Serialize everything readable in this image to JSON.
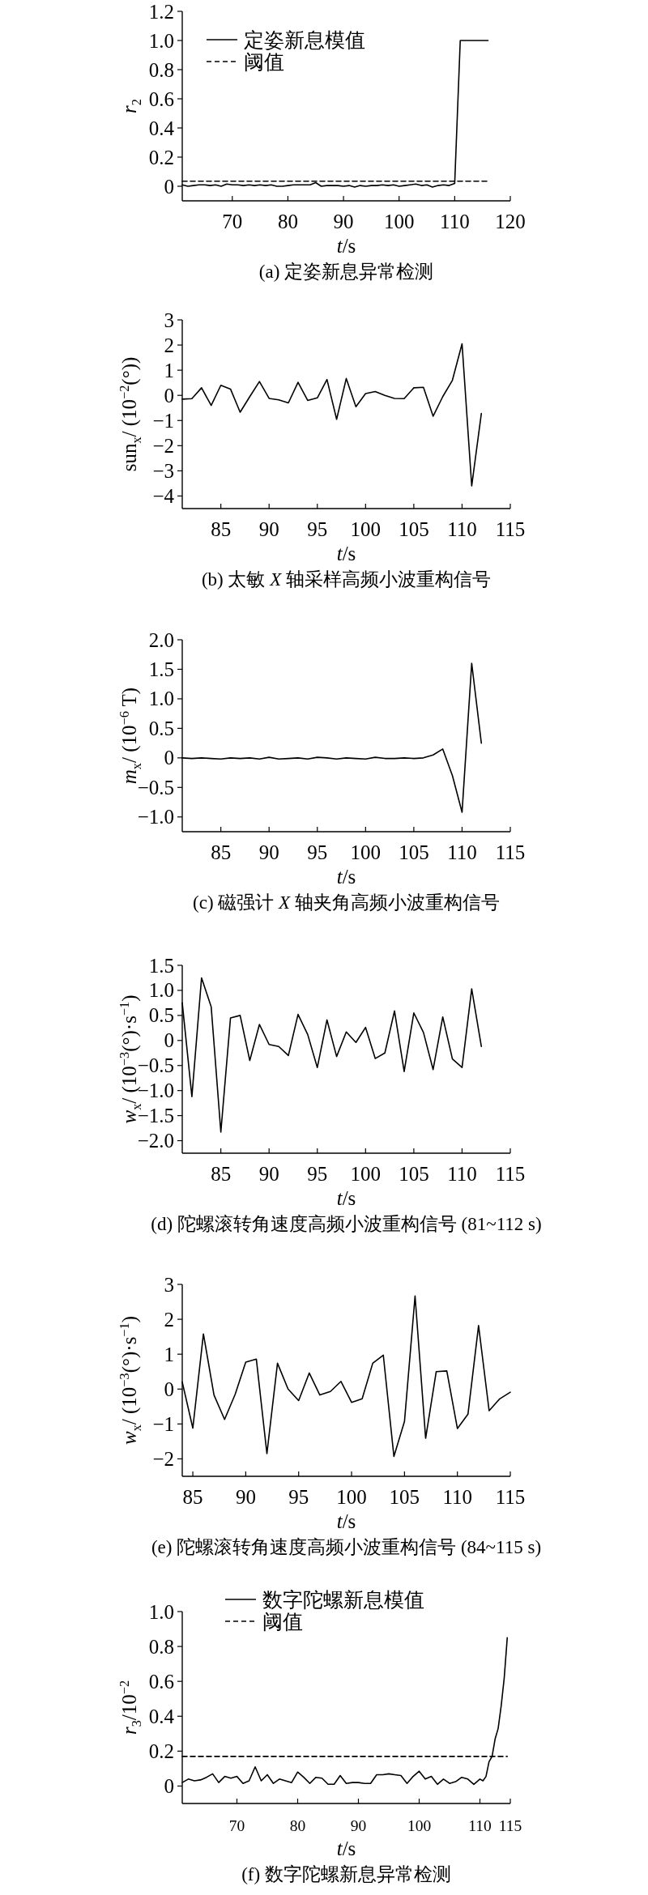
{
  "chart_data": [
    {
      "type": "line",
      "title": "(a) 定姿新息异常检测",
      "xlabel": "*t*/s",
      "ylabel": "*r*$_{2}$",
      "xlim": [
        61,
        120
      ],
      "ylim": [
        -0.1,
        1.2
      ],
      "xticks": [
        70,
        80,
        90,
        100,
        110,
        120
      ],
      "yticks": [
        0,
        0.2,
        0.4,
        0.6,
        0.8,
        {
          "value": 1,
          "label": "1.0"
        },
        1.2
      ],
      "legend": "top left",
      "series": [
        {
          "name": "定姿新息模值",
          "color": "#000000",
          "line_style": "solid",
          "x": [
            61,
            62,
            63,
            64,
            65,
            66,
            67,
            68,
            69,
            70,
            71,
            72,
            73,
            74,
            75,
            76,
            77,
            78,
            79,
            80,
            81,
            82,
            83,
            84,
            85,
            86,
            87,
            88,
            89,
            90,
            91,
            92,
            93,
            94,
            95,
            96,
            97,
            98,
            99,
            100,
            101,
            102,
            103,
            104,
            105,
            106,
            107,
            108,
            109,
            110,
            111,
            112,
            113,
            114,
            115,
            116
          ],
          "values": [
            0.01,
            0.0,
            0.005,
            0.01,
            0.01,
            0.005,
            0.01,
            0.0,
            0.015,
            0.01,
            0.01,
            0.005,
            0.01,
            0.005,
            0.01,
            0.005,
            0.01,
            0.0,
            0.0,
            0.005,
            0.01,
            0.01,
            0.01,
            0.01,
            0.025,
            0.0,
            0.005,
            0.005,
            0.005,
            0.0,
            0.005,
            -0.005,
            0.005,
            0.0,
            0.005,
            0.005,
            0.01,
            0.005,
            0.01,
            0.0,
            0.005,
            0.01,
            0.015,
            0.005,
            0.01,
            -0.005,
            0.005,
            0.01,
            0.005,
            0.02,
            1,
            1,
            1,
            1,
            1,
            1
          ]
        },
        {
          "name": "阈值",
          "color": "#000000",
          "line_style": "dashed",
          "x": [
            61,
            116
          ],
          "values": [
            0.035,
            0.035
          ]
        }
      ]
    },
    {
      "type": "line",
      "title": "(b) 太敏 *X* 轴采样高频小波重构信号",
      "xlabel": "*t*/s",
      "ylabel": "sun$_{x}$/ (10$^{−2}$(°))",
      "xlim": [
        81,
        115
      ],
      "ylim": [
        -4.5,
        3
      ],
      "xticks": [
        85,
        90,
        95,
        100,
        105,
        110,
        115
      ],
      "yticks": [
        {
          "value": -4,
          "label": "−4"
        },
        {
          "value": -3,
          "label": "−3"
        },
        {
          "value": -2,
          "label": "−2"
        },
        {
          "value": -1,
          "label": "−1"
        },
        0,
        1,
        2,
        3
      ],
      "x": [
        81,
        82,
        83,
        84,
        85,
        86,
        87,
        88,
        89,
        90,
        91,
        92,
        93,
        94,
        95,
        96,
        97,
        98,
        99,
        100,
        101,
        102,
        103,
        104,
        105,
        106,
        107,
        108,
        109,
        110,
        111,
        112
      ],
      "series": [
        {
          "color": "#000000",
          "values": [
            -0.15,
            -0.13,
            0.3,
            -0.4,
            0.4,
            0.25,
            -0.67,
            -0.05,
            0.55,
            -0.12,
            -0.18,
            -0.3,
            0.52,
            -0.2,
            -0.1,
            0.63,
            -0.95,
            0.67,
            -0.45,
            0.07,
            0.15,
            0.0,
            -0.12,
            -0.13,
            0.3,
            0.32,
            -0.83,
            -0.05,
            0.6,
            2.05,
            -3.6,
            -0.72
          ]
        }
      ]
    },
    {
      "type": "line",
      "title": "(c) 磁强计 *X* 轴夹角高频小波重构信号",
      "xlabel": "*t*/s",
      "ylabel": "*m*$_{x}$/ (10$^{−6}$ T)",
      "xlim": [
        81,
        115
      ],
      "ylim": [
        -1.25,
        2
      ],
      "xticks": [
        85,
        90,
        95,
        100,
        105,
        110,
        115
      ],
      "yticks": [
        {
          "value": -1,
          "label": "−1.0"
        },
        {
          "value": -0.5,
          "label": "−0.5"
        },
        0,
        0.5,
        {
          "value": 1,
          "label": "1.0"
        },
        1.5,
        {
          "value": 2,
          "label": "2.0"
        }
      ],
      "x": [
        81,
        82,
        83,
        84,
        85,
        86,
        87,
        88,
        89,
        90,
        91,
        92,
        93,
        94,
        95,
        96,
        97,
        98,
        99,
        100,
        101,
        102,
        103,
        104,
        105,
        106,
        107,
        108,
        109,
        110,
        111,
        112
      ],
      "series": [
        {
          "color": "#000000",
          "values": [
            0,
            -0.01,
            0,
            -0.01,
            -0.02,
            0,
            -0.01,
            0,
            -0.02,
            0.01,
            -0.02,
            -0.01,
            0,
            -0.02,
            0.01,
            0,
            -0.02,
            0,
            -0.01,
            -0.02,
            0.01,
            -0.01,
            -0.01,
            0,
            -0.01,
            0,
            0.05,
            0.15,
            -0.3,
            -0.92,
            1.6,
            0.25
          ]
        }
      ]
    },
    {
      "type": "line",
      "title": "(d) 陀螺滚转角速度高频小波重构信号 (81~112 s)",
      "xlabel": "*t*/s",
      "ylabel": "*w*$_{x}$/ (10$^{−3}$(°)·s$^{−1}$)",
      "xlim": [
        81,
        115
      ],
      "ylim": [
        -2.25,
        1.5
      ],
      "xticks": [
        85,
        90,
        95,
        100,
        105,
        110,
        115
      ],
      "yticks": [
        {
          "value": -2,
          "label": "−2.0"
        },
        {
          "value": -1.5,
          "label": "−1.5"
        },
        {
          "value": -1,
          "label": "−1.0"
        },
        {
          "value": -0.5,
          "label": "−0.5"
        },
        0,
        0.5,
        {
          "value": 1,
          "label": "1.0"
        },
        1.5
      ],
      "x": [
        81,
        82,
        83,
        84,
        85,
        86,
        87,
        88,
        89,
        90,
        91,
        92,
        93,
        94,
        95,
        96,
        97,
        98,
        99,
        100,
        101,
        102,
        103,
        104,
        105,
        106,
        107,
        108,
        109,
        110,
        111,
        112
      ],
      "series": [
        {
          "color": "#000000",
          "values": [
            0.75,
            -1.12,
            1.25,
            0.67,
            -1.83,
            0.45,
            0.5,
            -0.4,
            0.32,
            -0.08,
            -0.12,
            -0.3,
            0.52,
            0.12,
            -0.54,
            0.41,
            -0.32,
            0.17,
            -0.04,
            0.26,
            -0.36,
            -0.25,
            0.59,
            -0.62,
            0.55,
            0.16,
            -0.58,
            0.47,
            -0.37,
            -0.54,
            1.03,
            -0.12
          ]
        }
      ]
    },
    {
      "type": "line",
      "title": "(e) 陀螺滚转角速度高频小波重构信号 (84~115 s)",
      "xlabel": "*t*/s",
      "ylabel": "*w*$_{x}$/ (10$^{−3}$(°)·s$^{−1}$)",
      "xlim": [
        84,
        115
      ],
      "ylim": [
        -2.5,
        3
      ],
      "xticks": [
        85,
        90,
        95,
        100,
        105,
        110,
        115
      ],
      "yticks": [
        {
          "value": -2,
          "label": "−2"
        },
        {
          "value": -1,
          "label": "−1"
        },
        0,
        1,
        2,
        3
      ],
      "x": [
        84,
        85,
        86,
        87,
        88,
        89,
        90,
        91,
        92,
        93,
        94,
        95,
        96,
        97,
        98,
        99,
        100,
        101,
        102,
        103,
        104,
        105,
        106,
        107,
        108,
        109,
        110,
        111,
        112,
        113,
        114,
        115
      ],
      "series": [
        {
          "color": "#000000",
          "values": [
            0.2,
            -1.12,
            1.58,
            -0.17,
            -0.87,
            -0.15,
            0.77,
            0.86,
            -1.85,
            0.74,
            0.0,
            -0.33,
            0.46,
            -0.17,
            -0.07,
            0.22,
            -0.38,
            -0.28,
            0.74,
            0.97,
            -1.93,
            -0.93,
            2.67,
            -1.41,
            0.5,
            0.52,
            -1.13,
            -0.72,
            1.82,
            -0.62,
            -0.28,
            -0.09
          ]
        }
      ]
    },
    {
      "type": "line",
      "title": "(f) 数字陀螺新息异常检测",
      "xlabel": "*t*/s",
      "ylabel": "*r*$_{3}$/10$^{−2}$",
      "xlim": [
        61,
        115
      ],
      "ylim": [
        -0.1,
        1
      ],
      "xticks": [
        70,
        80,
        90,
        100,
        110,
        115
      ],
      "yticks": [
        0,
        0.2,
        0.4,
        0.6,
        0.8,
        {
          "value": 1,
          "label": "1.0"
        }
      ],
      "legend": "top",
      "series": [
        {
          "name": "数字陀螺新息模值",
          "color": "#000000",
          "line_style": "solid",
          "x": [
            61,
            62,
            63,
            64,
            65,
            66,
            67,
            68,
            69,
            70,
            71,
            72,
            73,
            74,
            75,
            76,
            77,
            78,
            79,
            80,
            81,
            82,
            83,
            84,
            85,
            86,
            87,
            88,
            89,
            90,
            91,
            92,
            93,
            94,
            95,
            96,
            97,
            98,
            99,
            100,
            101,
            102,
            103,
            104,
            105,
            106,
            107,
            108,
            109,
            110,
            110.5,
            111,
            111.5,
            112,
            112.5,
            113,
            113.5,
            114,
            114.5
          ],
          "values": [
            0.02,
            0.04,
            0.03,
            0.035,
            0.05,
            0.07,
            0.02,
            0.055,
            0.045,
            0.055,
            0.015,
            0.03,
            0.11,
            0.03,
            0.065,
            0.015,
            0.04,
            0.03,
            0.02,
            0.08,
            0.05,
            0.015,
            0.05,
            0.045,
            0.01,
            0.01,
            0.06,
            0.015,
            0.02,
            0.02,
            0.015,
            0.015,
            0.065,
            0.065,
            0.07,
            0.065,
            0.06,
            0.015,
            0.055,
            0.085,
            0.04,
            0.055,
            0.01,
            0.04,
            0.015,
            0.025,
            0.05,
            0.04,
            0.01,
            0.04,
            0.03,
            0.055,
            0.14,
            0.17,
            0.27,
            0.33,
            0.46,
            0.62,
            0.85
          ]
        },
        {
          "name": "阈值",
          "color": "#000000",
          "line_style": "dashed",
          "x": [
            61,
            114.5
          ],
          "values": [
            0.17,
            0.17
          ]
        }
      ]
    }
  ]
}
